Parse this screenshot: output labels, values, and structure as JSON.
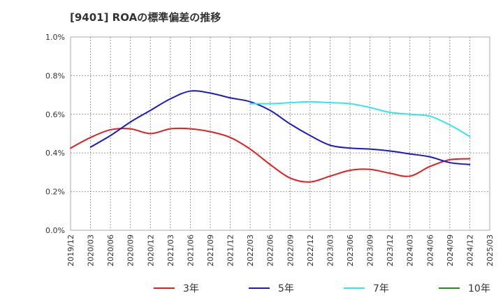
{
  "title": "[9401]  ROAの標準偏差の推移",
  "chart_data": {
    "type": "line",
    "title": "[9401]  ROAの標準偏差の推移",
    "ylim": [
      0,
      1.0
    ],
    "yticks": [
      "0.0%",
      "0.2%",
      "0.4%",
      "0.6%",
      "0.8%",
      "1.0%"
    ],
    "yticks_values": [
      0,
      0.2,
      0.4,
      0.6,
      0.8,
      1.0
    ],
    "categories": [
      "2019/12",
      "2020/03",
      "2020/06",
      "2020/09",
      "2020/12",
      "2021/03",
      "2021/06",
      "2021/09",
      "2021/12",
      "2022/03",
      "2022/06",
      "2022/09",
      "2022/12",
      "2023/03",
      "2023/06",
      "2023/09",
      "2023/12",
      "2024/03",
      "2024/06",
      "2024/09",
      "2024/12",
      "2025/03"
    ],
    "grid": true,
    "legend_position": "bottom",
    "series": [
      {
        "name": "3年",
        "color": "#e02020",
        "values": [
          0.425,
          0.48,
          0.52,
          0.525,
          0.5,
          0.525,
          0.525,
          0.51,
          0.48,
          0.42,
          0.34,
          0.27,
          0.25,
          0.28,
          0.31,
          0.315,
          0.295,
          0.28,
          0.33,
          0.365,
          0.37,
          null
        ]
      },
      {
        "name": "5年",
        "color": "#1a1ac8",
        "values": [
          null,
          0.43,
          0.49,
          0.56,
          0.62,
          0.68,
          0.72,
          0.71,
          0.685,
          0.665,
          0.62,
          0.55,
          0.49,
          0.44,
          0.425,
          0.42,
          0.41,
          0.395,
          0.38,
          0.35,
          0.34,
          null
        ]
      },
      {
        "name": "7年",
        "color": "#33e6ee",
        "values": [
          null,
          null,
          null,
          null,
          null,
          null,
          null,
          null,
          null,
          0.655,
          0.655,
          0.66,
          0.665,
          0.66,
          0.655,
          0.635,
          0.61,
          0.6,
          0.59,
          0.545,
          0.485,
          null
        ]
      },
      {
        "name": "10年",
        "color": "#228b22",
        "values": [
          null,
          null,
          null,
          null,
          null,
          null,
          null,
          null,
          null,
          null,
          null,
          null,
          null,
          null,
          null,
          null,
          null,
          null,
          null,
          null,
          null,
          null
        ]
      }
    ]
  }
}
